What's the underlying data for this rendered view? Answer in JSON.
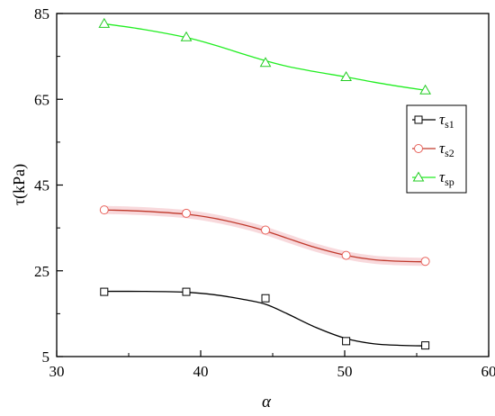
{
  "chart_data": {
    "type": "line",
    "xlabel": "α",
    "ylabel": "τ(kPa)",
    "xlim": [
      30,
      60
    ],
    "ylim": [
      5,
      85
    ],
    "xticks": [
      30,
      40,
      50,
      60
    ],
    "yticks": [
      5,
      25,
      45,
      65,
      85
    ],
    "xtick_labels": [
      "30",
      "40",
      "50",
      "60"
    ],
    "ytick_labels": [
      "5",
      "25",
      "45",
      "65",
      "85"
    ],
    "grid": false,
    "legend_position": "right",
    "series": [
      {
        "name": "τs1",
        "legend_main": "τ",
        "legend_sub": "s1",
        "marker": "square",
        "color": "#000000",
        "points": {
          "x": [
            33.3,
            39.0,
            44.5,
            50.1,
            55.6
          ],
          "y": [
            20.1,
            20.1,
            18.6,
            8.6,
            7.6
          ]
        },
        "fit": {
          "x": [
            33.3,
            36,
            39,
            41,
            43,
            44.5,
            46,
            48,
            50.1,
            52,
            54,
            55.6
          ],
          "y": [
            20.2,
            20.2,
            20.0,
            19.4,
            18.3,
            17.2,
            15.0,
            11.8,
            9.2,
            8.0,
            7.6,
            7.5
          ]
        }
      },
      {
        "name": "τs2",
        "legend_main": "τ",
        "legend_sub": "s2",
        "marker": "circle",
        "color": "#e8615a",
        "line_color": "#c0392b",
        "points": {
          "x": [
            33.3,
            39.0,
            44.5,
            50.1,
            55.6
          ],
          "y": [
            39.2,
            38.4,
            34.5,
            28.6,
            27.2
          ]
        },
        "fit": {
          "x": [
            33.3,
            36,
            39,
            41,
            43,
            44.5,
            46,
            48,
            50.1,
            52,
            54,
            55.6
          ],
          "y": [
            39.2,
            38.9,
            38.2,
            37.2,
            35.7,
            34.3,
            32.6,
            30.4,
            28.6,
            27.6,
            27.2,
            27.1
          ]
        }
      },
      {
        "name": "τsp",
        "legend_main": "τ",
        "legend_sub": "sp",
        "marker": "triangle",
        "color": "#22cc22",
        "line_color": "#22ee22",
        "points": {
          "x": [
            33.3,
            39.0,
            44.5,
            50.1,
            55.6
          ],
          "y": [
            82.6,
            79.5,
            73.5,
            70.2,
            67.1
          ]
        },
        "fit": {
          "x": [
            33.3,
            36,
            39,
            41,
            43,
            44.5,
            46,
            48,
            50.1,
            52,
            54,
            55.6
          ],
          "y": [
            82.6,
            81.3,
            79.4,
            77.6,
            75.5,
            74.0,
            72.7,
            71.4,
            70.2,
            69.0,
            67.9,
            67.1
          ]
        }
      }
    ]
  }
}
